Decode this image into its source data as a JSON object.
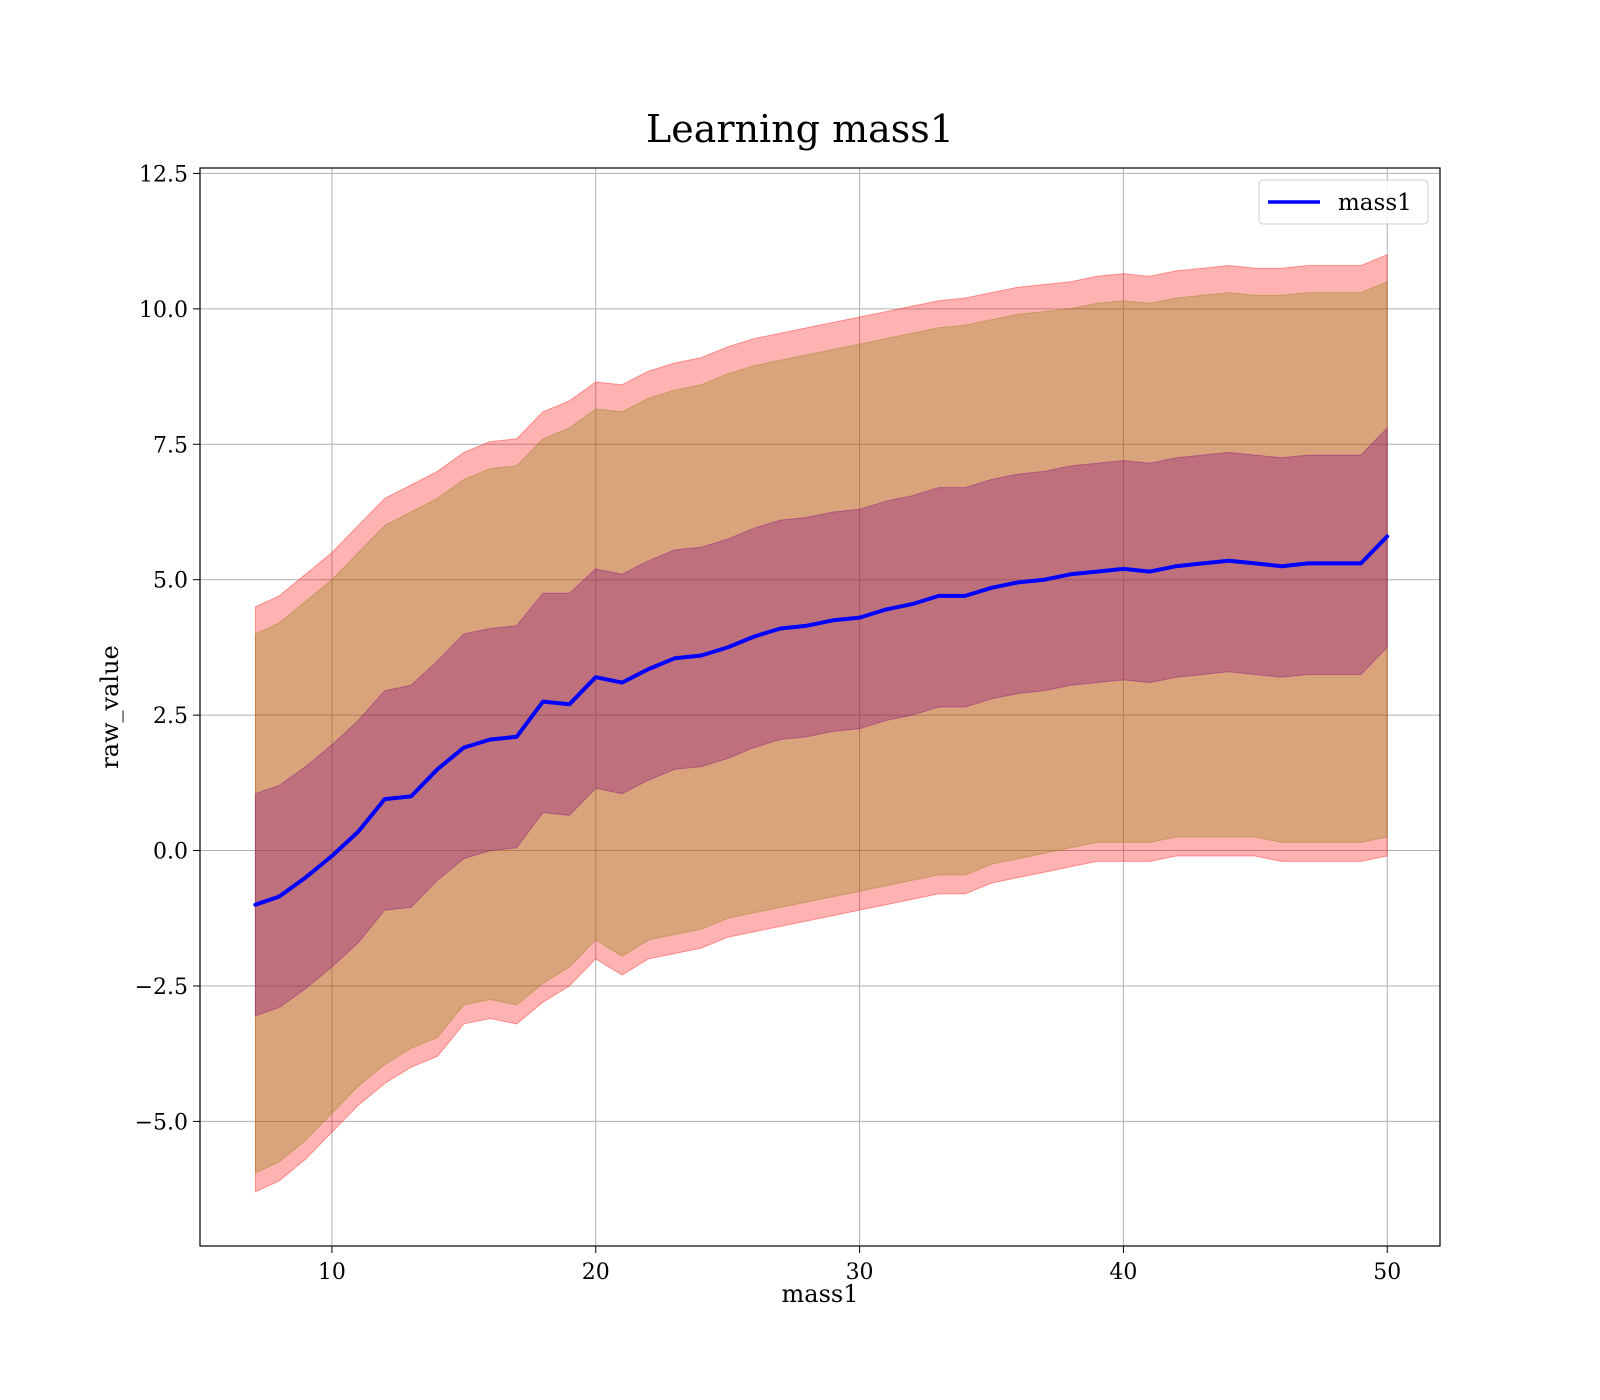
{
  "chart_data": {
    "type": "line",
    "title": "Learning mass1",
    "xlabel": "mass1",
    "ylabel": "raw_value",
    "xlim": [
      5.0,
      52.0
    ],
    "ylim": [
      -7.3,
      12.6
    ],
    "xticks": [
      10,
      20,
      30,
      40,
      50
    ],
    "xtick_labels": [
      "10",
      "20",
      "30",
      "40",
      "50"
    ],
    "yticks": [
      -5.0,
      -2.5,
      0.0,
      2.5,
      5.0,
      7.5,
      10.0,
      12.5
    ],
    "ytick_labels": [
      "−5.0",
      "−2.5",
      "0.0",
      "2.5",
      "5.0",
      "7.5",
      "10.0",
      "12.5"
    ],
    "grid": true,
    "legend_position": "top-right",
    "series": [
      {
        "name": "mass1",
        "color": "#0000ff",
        "x": [
          7.1,
          8.0,
          9.0,
          10.0,
          11.0,
          12.0,
          13.0,
          14.0,
          15.0,
          16.0,
          17.0,
          18.0,
          19.0,
          20.0,
          21.0,
          22.0,
          23.0,
          24.0,
          25.0,
          26.0,
          27.0,
          28.0,
          29.0,
          30.0,
          31.0,
          32.0,
          33.0,
          34.0,
          35.0,
          36.0,
          37.0,
          38.0,
          39.0,
          40.0,
          41.0,
          42.0,
          43.0,
          44.0,
          45.0,
          46.0,
          47.0,
          48.0,
          49.0,
          50.0
        ],
        "y": [
          -1.0,
          -0.85,
          -0.5,
          -0.1,
          0.35,
          0.95,
          1.0,
          1.5,
          1.9,
          2.05,
          2.1,
          2.75,
          2.7,
          3.2,
          3.1,
          3.35,
          3.55,
          3.6,
          3.75,
          3.95,
          4.1,
          4.15,
          4.25,
          4.3,
          4.45,
          4.55,
          4.7,
          4.7,
          4.85,
          4.95,
          5.0,
          5.1,
          5.15,
          5.2,
          5.15,
          5.25,
          5.3,
          5.35,
          5.3,
          5.25,
          5.3,
          5.3,
          5.3,
          5.8
        ]
      }
    ],
    "bands": [
      {
        "color": "#ff0000",
        "opacity": 0.3,
        "description_level": "outer",
        "upper": [
          4.5,
          4.7,
          5.1,
          5.5,
          6.0,
          6.5,
          6.75,
          7.0,
          7.35,
          7.55,
          7.6,
          8.1,
          8.3,
          8.65,
          8.6,
          8.85,
          9.0,
          9.1,
          9.3,
          9.45,
          9.55,
          9.65,
          9.75,
          9.85,
          9.95,
          10.05,
          10.15,
          10.2,
          10.3,
          10.4,
          10.45,
          10.5,
          10.6,
          10.65,
          10.6,
          10.7,
          10.75,
          10.8,
          10.75,
          10.75,
          10.8,
          10.8,
          10.8,
          11.0
        ],
        "lower": [
          -6.3,
          -6.1,
          -5.7,
          -5.2,
          -4.7,
          -4.3,
          -4.0,
          -3.8,
          -3.2,
          -3.1,
          -3.2,
          -2.8,
          -2.5,
          -2.0,
          -2.3,
          -2.0,
          -1.9,
          -1.8,
          -1.6,
          -1.5,
          -1.4,
          -1.3,
          -1.2,
          -1.1,
          -1.0,
          -0.9,
          -0.8,
          -0.8,
          -0.6,
          -0.5,
          -0.4,
          -0.3,
          -0.2,
          -0.2,
          -0.2,
          -0.1,
          -0.1,
          -0.1,
          -0.1,
          -0.2,
          -0.2,
          -0.2,
          -0.2,
          -0.1
        ]
      },
      {
        "color": "#808000",
        "opacity": 0.3,
        "description_level": "middle",
        "upper": [
          4.0,
          4.2,
          4.6,
          5.0,
          5.5,
          6.0,
          6.25,
          6.5,
          6.85,
          7.05,
          7.1,
          7.6,
          7.8,
          8.15,
          8.1,
          8.35,
          8.5,
          8.6,
          8.8,
          8.95,
          9.05,
          9.15,
          9.25,
          9.35,
          9.45,
          9.55,
          9.65,
          9.7,
          9.8,
          9.9,
          9.95,
          10.0,
          10.1,
          10.15,
          10.1,
          10.2,
          10.25,
          10.3,
          10.25,
          10.25,
          10.3,
          10.3,
          10.3,
          10.5
        ],
        "lower": [
          -5.95,
          -5.75,
          -5.35,
          -4.85,
          -4.35,
          -3.95,
          -3.65,
          -3.45,
          -2.85,
          -2.75,
          -2.85,
          -2.45,
          -2.15,
          -1.65,
          -1.95,
          -1.65,
          -1.55,
          -1.45,
          -1.25,
          -1.15,
          -1.05,
          -0.95,
          -0.85,
          -0.75,
          -0.65,
          -0.55,
          -0.45,
          -0.45,
          -0.25,
          -0.15,
          -0.05,
          0.05,
          0.15,
          0.15,
          0.15,
          0.25,
          0.25,
          0.25,
          0.25,
          0.15,
          0.15,
          0.15,
          0.15,
          0.25
        ]
      },
      {
        "color": "#800080",
        "opacity": 0.3,
        "description_level": "inner",
        "upper": [
          1.05,
          1.2,
          1.55,
          1.95,
          2.4,
          2.95,
          3.05,
          3.5,
          4.0,
          4.1,
          4.15,
          4.75,
          4.75,
          5.2,
          5.1,
          5.35,
          5.55,
          5.6,
          5.75,
          5.95,
          6.1,
          6.15,
          6.25,
          6.3,
          6.45,
          6.55,
          6.7,
          6.7,
          6.85,
          6.95,
          7.0,
          7.1,
          7.15,
          7.2,
          7.15,
          7.25,
          7.3,
          7.35,
          7.3,
          7.25,
          7.3,
          7.3,
          7.3,
          7.8
        ],
        "lower": [
          -3.05,
          -2.9,
          -2.55,
          -2.15,
          -1.7,
          -1.1,
          -1.05,
          -0.55,
          -0.15,
          0.0,
          0.05,
          0.7,
          0.65,
          1.15,
          1.05,
          1.3,
          1.5,
          1.55,
          1.7,
          1.9,
          2.05,
          2.1,
          2.2,
          2.25,
          2.4,
          2.5,
          2.65,
          2.65,
          2.8,
          2.9,
          2.95,
          3.05,
          3.1,
          3.15,
          3.1,
          3.2,
          3.25,
          3.3,
          3.25,
          3.2,
          3.25,
          3.25,
          3.25,
          3.75
        ]
      }
    ]
  }
}
